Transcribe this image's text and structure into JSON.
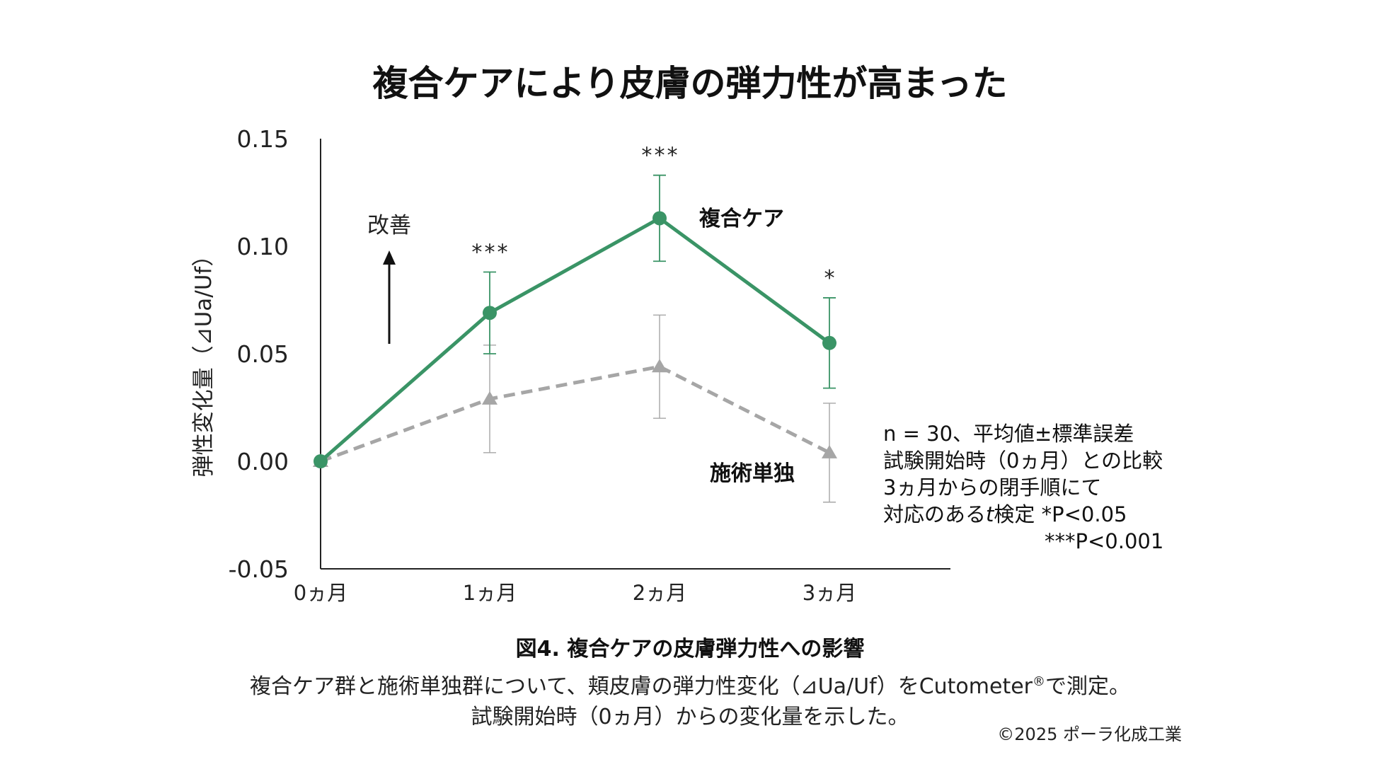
{
  "title": "複合ケアにより皮膚の弾力性が高まった",
  "chart_data": {
    "type": "line",
    "categories": [
      "0ヵ月",
      "1ヵ月",
      "2ヵ月",
      "3ヵ月"
    ],
    "ylabel": "弾性変化量（⊿Ua/Uf）",
    "ylim": [
      -0.05,
      0.15
    ],
    "yticks": [
      "0.15",
      "0.10",
      "0.05",
      "0.00",
      "-0.05"
    ],
    "ytick_values": [
      0.15,
      0.1,
      0.05,
      0.0,
      -0.05
    ],
    "grid": false,
    "series": [
      {
        "name": "複合ケア",
        "values": [
          0.0,
          0.069,
          0.113,
          0.055
        ],
        "errors": [
          0.0,
          0.019,
          0.02,
          0.021
        ],
        "color": "#3a9466",
        "marker": "circle",
        "line_style": "solid",
        "significance": [
          "",
          "***",
          "***",
          "*"
        ]
      },
      {
        "name": "施術単独",
        "values": [
          0.0,
          0.029,
          0.044,
          0.004
        ],
        "errors": [
          0.0,
          0.025,
          0.024,
          0.023
        ],
        "color": "#a6a6a6",
        "marker": "triangle",
        "line_style": "dashed"
      }
    ],
    "arrow_label": "改善"
  },
  "stats_note": [
    "n = 30、平均値±標準誤差",
    "試験開始時（0ヵ月）との比較",
    "3ヵ月からの閉手順にて",
    "対応のある",
    "t",
    "検定 *P<0.05",
    "***P<0.001"
  ],
  "caption": {
    "figure": "図4. 複合ケアの皮膚弾力性への影響",
    "line1_a": "複合ケア群と施術単独群について、頬皮膚の弾力性変化（⊿Ua/Uf）をCutometer",
    "line1_reg": "®",
    "line1_b": "で測定。",
    "line2": "試験開始時（0ヵ月）からの変化量を示した。"
  },
  "copyright": "©2025 ポーラ化成工業"
}
